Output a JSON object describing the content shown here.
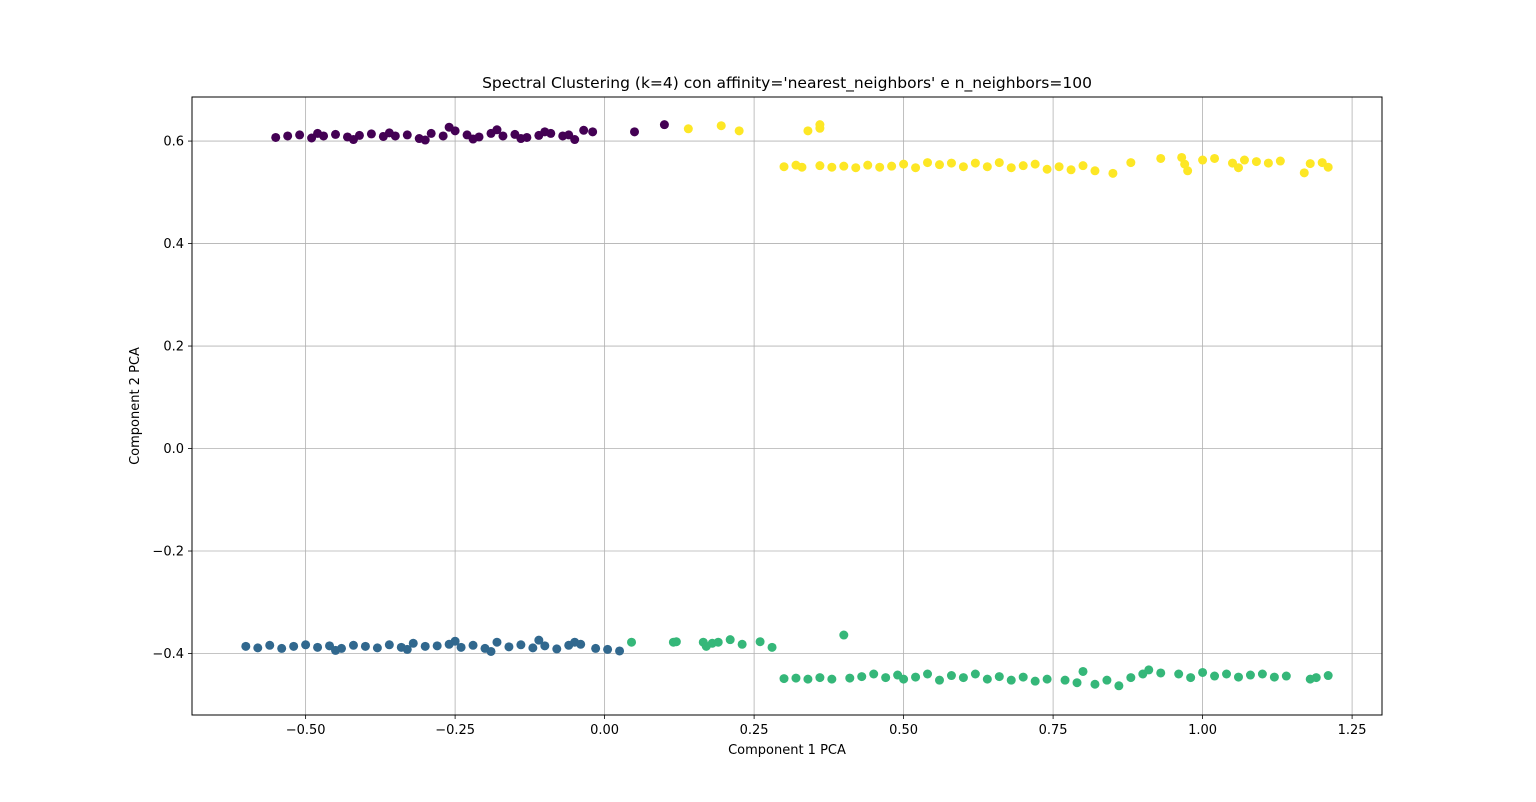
{
  "chart_data": {
    "type": "scatter",
    "title": "Spectral Clustering (k=4) con affinity='nearest_neighbors' e n_neighbors=100",
    "xlabel": "Component 1 PCA",
    "ylabel": "Component 2 PCA",
    "xlim": [
      -0.69,
      1.3
    ],
    "ylim": [
      -0.52,
      0.686
    ],
    "xticks": [
      -0.5,
      -0.25,
      0.0,
      0.25,
      0.5,
      0.75,
      1.0,
      1.25
    ],
    "xtick_labels": [
      "−0.50",
      "−0.25",
      "0.00",
      "0.25",
      "0.50",
      "0.75",
      "1.00",
      "1.25"
    ],
    "yticks": [
      -0.4,
      -0.2,
      0.0,
      0.2,
      0.4,
      0.6
    ],
    "ytick_labels": [
      "−0.4",
      "−0.2",
      "0.0",
      "0.2",
      "0.4",
      "0.6"
    ],
    "grid": true,
    "legend": "none",
    "colormap": "viridis",
    "series": [
      {
        "color": "#440154",
        "points": [
          [
            -0.55,
            0.607
          ],
          [
            -0.53,
            0.61
          ],
          [
            -0.51,
            0.612
          ],
          [
            -0.49,
            0.606
          ],
          [
            -0.47,
            0.61
          ],
          [
            -0.45,
            0.613
          ],
          [
            -0.43,
            0.608
          ],
          [
            -0.41,
            0.611
          ],
          [
            -0.39,
            0.614
          ],
          [
            -0.37,
            0.609
          ],
          [
            -0.35,
            0.61
          ],
          [
            -0.33,
            0.612
          ],
          [
            -0.31,
            0.605
          ],
          [
            -0.29,
            0.615
          ],
          [
            -0.27,
            0.61
          ],
          [
            -0.25,
            0.62
          ],
          [
            -0.23,
            0.612
          ],
          [
            -0.21,
            0.608
          ],
          [
            -0.19,
            0.615
          ],
          [
            -0.17,
            0.61
          ],
          [
            -0.15,
            0.613
          ],
          [
            -0.13,
            0.607
          ],
          [
            -0.11,
            0.611
          ],
          [
            -0.09,
            0.615
          ],
          [
            -0.07,
            0.61
          ],
          [
            -0.05,
            0.603
          ],
          [
            -0.48,
            0.615
          ],
          [
            -0.42,
            0.603
          ],
          [
            -0.36,
            0.616
          ],
          [
            -0.3,
            0.602
          ],
          [
            -0.26,
            0.627
          ],
          [
            -0.22,
            0.604
          ],
          [
            -0.18,
            0.622
          ],
          [
            -0.14,
            0.605
          ],
          [
            -0.1,
            0.618
          ],
          [
            -0.06,
            0.612
          ],
          [
            -0.035,
            0.621
          ],
          [
            -0.02,
            0.618
          ],
          [
            0.05,
            0.618
          ],
          [
            0.1,
            0.632
          ]
        ]
      },
      {
        "color": "#31688e",
        "points": [
          [
            -0.6,
            -0.386
          ],
          [
            -0.58,
            -0.389
          ],
          [
            -0.56,
            -0.384
          ],
          [
            -0.54,
            -0.39
          ],
          [
            -0.52,
            -0.386
          ],
          [
            -0.5,
            -0.383
          ],
          [
            -0.48,
            -0.388
          ],
          [
            -0.46,
            -0.385
          ],
          [
            -0.44,
            -0.39
          ],
          [
            -0.42,
            -0.384
          ],
          [
            -0.4,
            -0.386
          ],
          [
            -0.38,
            -0.389
          ],
          [
            -0.36,
            -0.383
          ],
          [
            -0.34,
            -0.388
          ],
          [
            -0.32,
            -0.38
          ],
          [
            -0.3,
            -0.386
          ],
          [
            -0.28,
            -0.385
          ],
          [
            -0.26,
            -0.382
          ],
          [
            -0.24,
            -0.388
          ],
          [
            -0.22,
            -0.384
          ],
          [
            -0.2,
            -0.39
          ],
          [
            -0.18,
            -0.378
          ],
          [
            -0.16,
            -0.387
          ],
          [
            -0.14,
            -0.383
          ],
          [
            -0.12,
            -0.389
          ],
          [
            -0.1,
            -0.385
          ],
          [
            -0.08,
            -0.391
          ],
          [
            -0.06,
            -0.384
          ],
          [
            -0.45,
            -0.394
          ],
          [
            -0.33,
            -0.392
          ],
          [
            -0.19,
            -0.396
          ],
          [
            -0.25,
            -0.376
          ],
          [
            -0.11,
            -0.374
          ],
          [
            -0.05,
            -0.378
          ],
          [
            -0.04,
            -0.382
          ],
          [
            -0.015,
            -0.39
          ],
          [
            0.005,
            -0.392
          ],
          [
            0.025,
            -0.395
          ]
        ]
      },
      {
        "color": "#35b779",
        "points": [
          [
            0.045,
            -0.378
          ],
          [
            0.115,
            -0.378
          ],
          [
            0.12,
            -0.377
          ],
          [
            0.165,
            -0.378
          ],
          [
            0.17,
            -0.386
          ],
          [
            0.18,
            -0.38
          ],
          [
            0.19,
            -0.378
          ],
          [
            0.21,
            -0.373
          ],
          [
            0.23,
            -0.382
          ],
          [
            0.26,
            -0.377
          ],
          [
            0.28,
            -0.388
          ],
          [
            0.4,
            -0.364
          ],
          [
            0.3,
            -0.449
          ],
          [
            0.32,
            -0.448
          ],
          [
            0.34,
            -0.45
          ],
          [
            0.36,
            -0.447
          ],
          [
            0.38,
            -0.45
          ],
          [
            0.41,
            -0.448
          ],
          [
            0.43,
            -0.445
          ],
          [
            0.45,
            -0.44
          ],
          [
            0.47,
            -0.447
          ],
          [
            0.49,
            -0.442
          ],
          [
            0.5,
            -0.45
          ],
          [
            0.52,
            -0.446
          ],
          [
            0.54,
            -0.44
          ],
          [
            0.56,
            -0.452
          ],
          [
            0.58,
            -0.443
          ],
          [
            0.6,
            -0.447
          ],
          [
            0.62,
            -0.44
          ],
          [
            0.64,
            -0.45
          ],
          [
            0.66,
            -0.445
          ],
          [
            0.68,
            -0.452
          ],
          [
            0.7,
            -0.446
          ],
          [
            0.72,
            -0.454
          ],
          [
            0.74,
            -0.45
          ],
          [
            0.77,
            -0.452
          ],
          [
            0.79,
            -0.457
          ],
          [
            0.8,
            -0.435
          ],
          [
            0.82,
            -0.46
          ],
          [
            0.84,
            -0.452
          ],
          [
            0.86,
            -0.463
          ],
          [
            0.88,
            -0.447
          ],
          [
            0.9,
            -0.44
          ],
          [
            0.91,
            -0.432
          ],
          [
            0.93,
            -0.438
          ],
          [
            0.96,
            -0.44
          ],
          [
            0.98,
            -0.447
          ],
          [
            1.0,
            -0.437
          ],
          [
            1.02,
            -0.444
          ],
          [
            1.04,
            -0.44
          ],
          [
            1.06,
            -0.446
          ],
          [
            1.08,
            -0.442
          ],
          [
            1.1,
            -0.44
          ],
          [
            1.12,
            -0.446
          ],
          [
            1.14,
            -0.444
          ],
          [
            1.18,
            -0.45
          ],
          [
            1.19,
            -0.447
          ],
          [
            1.21,
            -0.443
          ]
        ]
      },
      {
        "color": "#fde725",
        "points": [
          [
            0.14,
            0.624
          ],
          [
            0.195,
            0.63
          ],
          [
            0.225,
            0.62
          ],
          [
            0.34,
            0.62
          ],
          [
            0.36,
            0.625
          ],
          [
            0.36,
            0.632
          ],
          [
            0.3,
            0.55
          ],
          [
            0.32,
            0.553
          ],
          [
            0.33,
            0.549
          ],
          [
            0.36,
            0.552
          ],
          [
            0.38,
            0.549
          ],
          [
            0.4,
            0.551
          ],
          [
            0.42,
            0.548
          ],
          [
            0.44,
            0.553
          ],
          [
            0.46,
            0.549
          ],
          [
            0.48,
            0.551
          ],
          [
            0.5,
            0.555
          ],
          [
            0.52,
            0.548
          ],
          [
            0.54,
            0.558
          ],
          [
            0.56,
            0.554
          ],
          [
            0.58,
            0.557
          ],
          [
            0.6,
            0.55
          ],
          [
            0.62,
            0.557
          ],
          [
            0.64,
            0.55
          ],
          [
            0.66,
            0.558
          ],
          [
            0.68,
            0.548
          ],
          [
            0.7,
            0.552
          ],
          [
            0.72,
            0.555
          ],
          [
            0.74,
            0.545
          ],
          [
            0.76,
            0.55
          ],
          [
            0.78,
            0.544
          ],
          [
            0.8,
            0.552
          ],
          [
            0.82,
            0.542
          ],
          [
            0.85,
            0.537
          ],
          [
            0.88,
            0.558
          ],
          [
            0.93,
            0.566
          ],
          [
            0.965,
            0.568
          ],
          [
            0.975,
            0.542
          ],
          [
            1.0,
            0.563
          ],
          [
            1.02,
            0.566
          ],
          [
            1.05,
            0.557
          ],
          [
            1.07,
            0.563
          ],
          [
            1.09,
            0.56
          ],
          [
            1.11,
            0.557
          ],
          [
            1.13,
            0.561
          ],
          [
            1.17,
            0.538
          ],
          [
            1.18,
            0.556
          ],
          [
            1.2,
            0.558
          ],
          [
            1.21,
            0.549
          ],
          [
            0.97,
            0.555
          ],
          [
            1.06,
            0.548
          ]
        ]
      }
    ]
  }
}
